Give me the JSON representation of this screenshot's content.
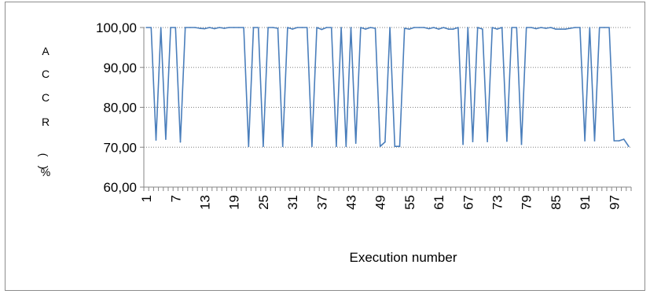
{
  "chart_data": {
    "type": "line",
    "xlabel": "Execution number",
    "ylabel_chars": [
      "A",
      "C",
      "C",
      "R",
      "(",
      "%",
      ")"
    ],
    "ylim": [
      60,
      100
    ],
    "yticks": [
      "60,00",
      "70,00",
      "80,00",
      "90,00",
      "100,00"
    ],
    "ytick_values": [
      60,
      70,
      80,
      90,
      100
    ],
    "xlim": [
      1,
      100
    ],
    "xticks": [
      1,
      7,
      13,
      19,
      25,
      31,
      37,
      43,
      49,
      55,
      61,
      67,
      73,
      79,
      85,
      91,
      97
    ],
    "grid": "horizontal-dotted",
    "legend": "none",
    "series": [
      {
        "color": "#4a7ebb",
        "x": [
          1,
          2,
          3,
          4,
          5,
          6,
          7,
          8,
          9,
          10,
          11,
          12,
          13,
          14,
          15,
          16,
          17,
          18,
          19,
          20,
          21,
          22,
          23,
          24,
          25,
          26,
          27,
          28,
          29,
          30,
          31,
          32,
          33,
          34,
          35,
          36,
          37,
          38,
          39,
          40,
          41,
          42,
          43,
          44,
          45,
          46,
          47,
          48,
          49,
          50,
          51,
          52,
          53,
          54,
          55,
          56,
          57,
          58,
          59,
          60,
          61,
          62,
          63,
          64,
          65,
          66,
          67,
          68,
          69,
          70,
          71,
          72,
          73,
          74,
          75,
          76,
          77,
          78,
          79,
          80,
          81,
          82,
          83,
          84,
          85,
          86,
          87,
          88,
          89,
          90,
          91,
          92,
          93,
          94,
          95,
          96,
          97,
          98,
          99,
          100
        ],
        "values": [
          100,
          100,
          71.8,
          100,
          72,
          100,
          100,
          71.3,
          100,
          100,
          100,
          99.8,
          99.7,
          100,
          99.7,
          100,
          99.8,
          100,
          100,
          100,
          100,
          70.2,
          100,
          100,
          70.2,
          100,
          100,
          99.8,
          70.2,
          100,
          99.6,
          100,
          100,
          100,
          70.2,
          100,
          99.5,
          100,
          100,
          70.2,
          100,
          70.2,
          100,
          71,
          100,
          99.6,
          100,
          99.8,
          70.2,
          71.3,
          100,
          70.2,
          70.2,
          99.8,
          99.6,
          100,
          100,
          100,
          99.7,
          100,
          99.6,
          100,
          99.6,
          99.6,
          100,
          70.7,
          100,
          71.4,
          100,
          99.6,
          71.4,
          100,
          99.6,
          100,
          71.5,
          100,
          100,
          70.7,
          100,
          100,
          99.7,
          100,
          99.8,
          100,
          99.6,
          99.6,
          99.6,
          99.8,
          100,
          100,
          71.6,
          100,
          71.6,
          100,
          100,
          100,
          71.6,
          71.6,
          72,
          70.2
        ]
      }
    ]
  }
}
